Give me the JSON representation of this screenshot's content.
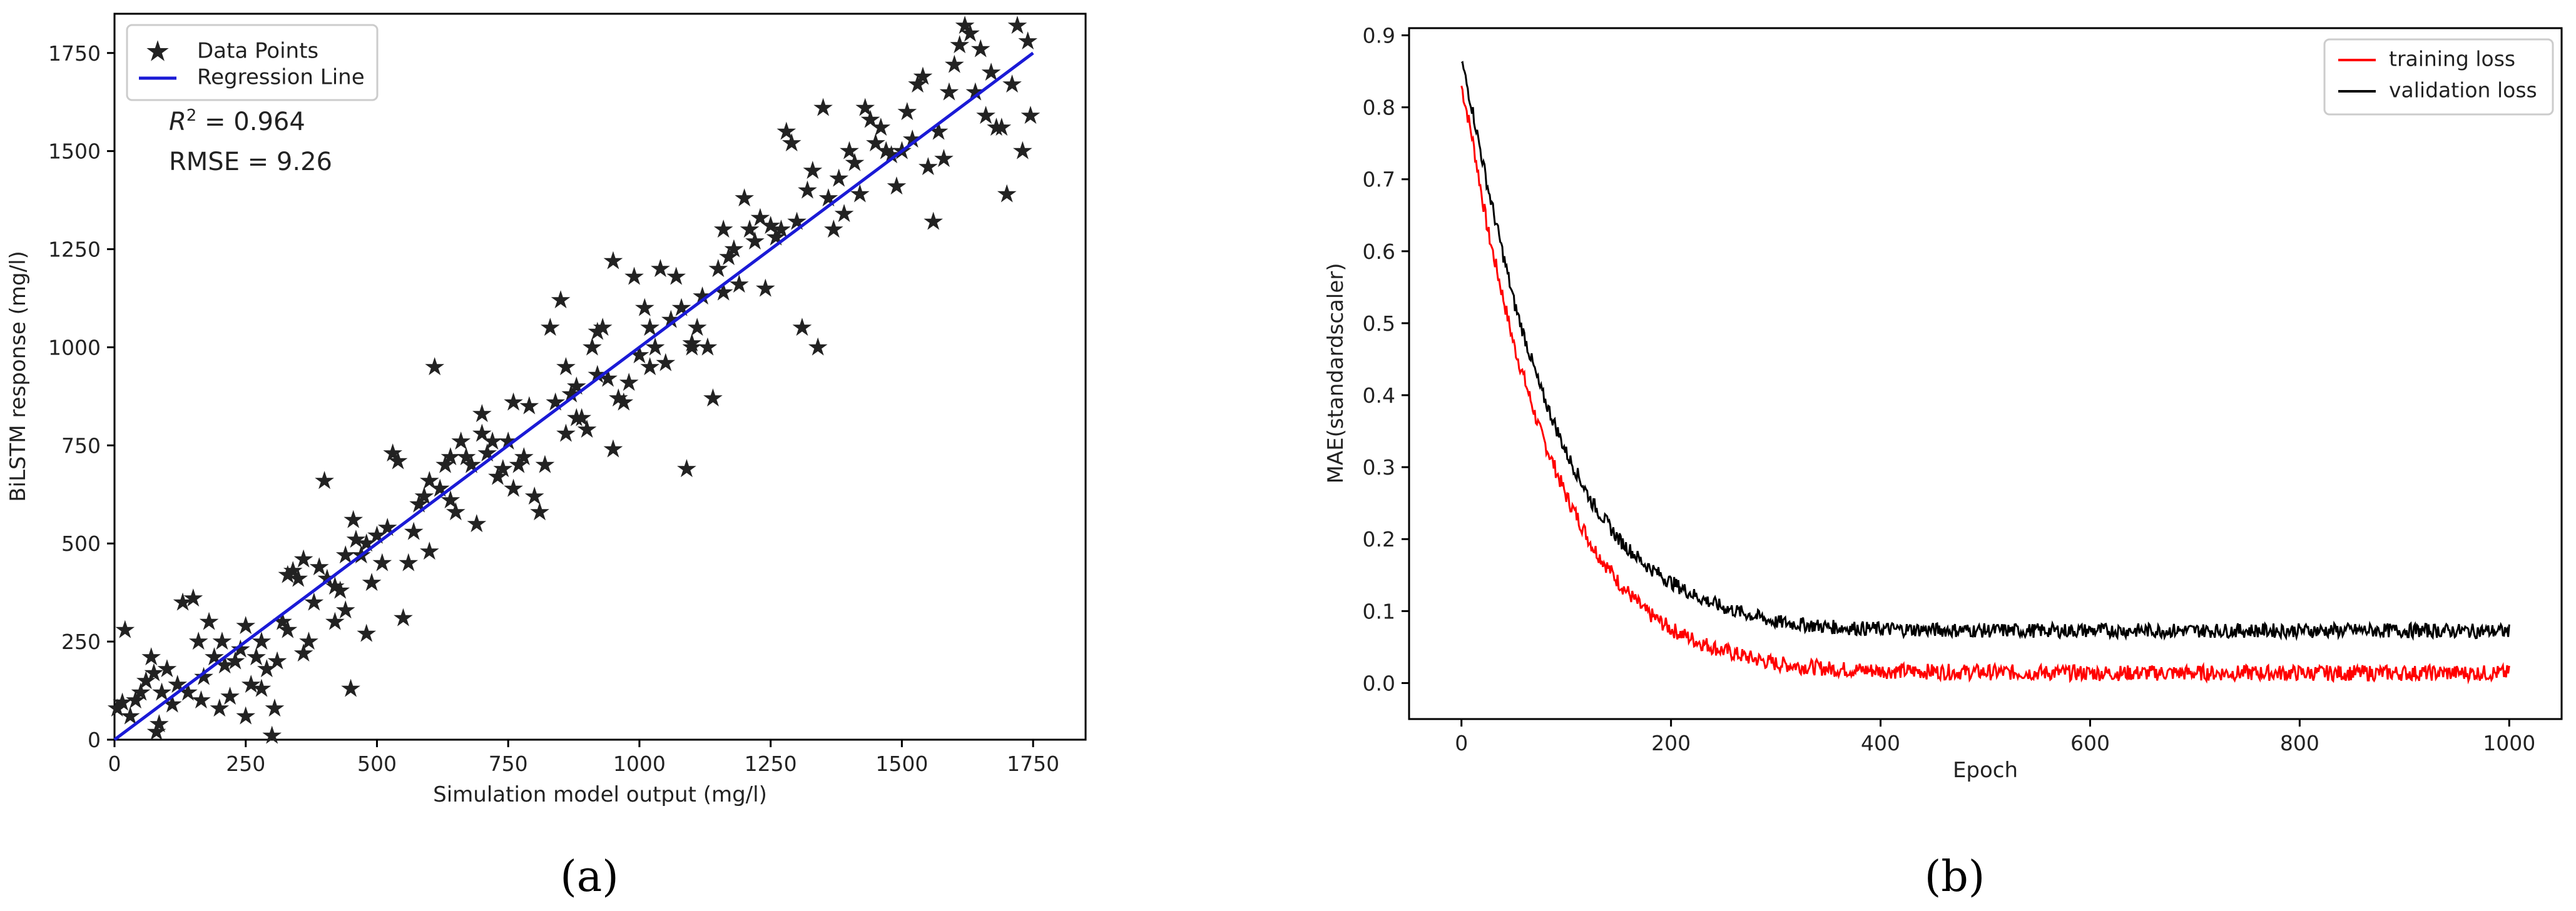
{
  "chart_data": [
    {
      "type": "scatter",
      "panel_label": "(a)",
      "xlabel": "Simulation model output (mg/l)",
      "ylabel": "BiLSTM response (mg/l)",
      "xlim": [
        0,
        1850
      ],
      "ylim": [
        0,
        1850
      ],
      "xticks": [
        0,
        250,
        500,
        750,
        1000,
        1250,
        1500,
        1750
      ],
      "yticks": [
        0,
        250,
        500,
        750,
        1000,
        1250,
        1500,
        1750
      ],
      "legend_position": "top-left",
      "annotations": {
        "r2_prefix": "R",
        "r2_sup": "2",
        "r2_value": " = 0.964",
        "rmse": "RMSE = 9.26"
      },
      "series": [
        {
          "name": "Data Points",
          "marker": "star",
          "color": "#000000",
          "points": [
            [
              5,
              80
            ],
            [
              15,
              95
            ],
            [
              20,
              280
            ],
            [
              30,
              60
            ],
            [
              40,
              100
            ],
            [
              50,
              120
            ],
            [
              60,
              150
            ],
            [
              70,
              210
            ],
            [
              75,
              170
            ],
            [
              80,
              20
            ],
            [
              85,
              40
            ],
            [
              90,
              120
            ],
            [
              100,
              180
            ],
            [
              110,
              90
            ],
            [
              120,
              140
            ],
            [
              130,
              350
            ],
            [
              140,
              120
            ],
            [
              150,
              360
            ],
            [
              160,
              250
            ],
            [
              165,
              100
            ],
            [
              170,
              160
            ],
            [
              180,
              300
            ],
            [
              190,
              210
            ],
            [
              200,
              80
            ],
            [
              205,
              250
            ],
            [
              210,
              190
            ],
            [
              220,
              110
            ],
            [
              230,
              200
            ],
            [
              240,
              230
            ],
            [
              250,
              60
            ],
            [
              260,
              140
            ],
            [
              270,
              210
            ],
            [
              280,
              250
            ],
            [
              290,
              180
            ],
            [
              300,
              10
            ],
            [
              305,
              80
            ],
            [
              310,
              200
            ],
            [
              320,
              300
            ],
            [
              330,
              280
            ],
            [
              340,
              430
            ],
            [
              350,
              410
            ],
            [
              360,
              220
            ],
            [
              370,
              250
            ],
            [
              380,
              350
            ],
            [
              390,
              440
            ],
            [
              400,
              660
            ],
            [
              405,
              410
            ],
            [
              420,
              300
            ],
            [
              430,
              380
            ],
            [
              440,
              470
            ],
            [
              450,
              130
            ],
            [
              455,
              560
            ],
            [
              460,
              510
            ],
            [
              470,
              470
            ],
            [
              480,
              500
            ],
            [
              490,
              400
            ],
            [
              500,
              520
            ],
            [
              510,
              450
            ],
            [
              520,
              540
            ],
            [
              530,
              730
            ],
            [
              540,
              710
            ],
            [
              550,
              310
            ],
            [
              560,
              450
            ],
            [
              570,
              530
            ],
            [
              580,
              600
            ],
            [
              590,
              620
            ],
            [
              600,
              660
            ],
            [
              610,
              950
            ],
            [
              620,
              640
            ],
            [
              630,
              700
            ],
            [
              640,
              610
            ],
            [
              650,
              580
            ],
            [
              660,
              760
            ],
            [
              670,
              720
            ],
            [
              680,
              700
            ],
            [
              690,
              550
            ],
            [
              700,
              780
            ],
            [
              710,
              730
            ],
            [
              720,
              760
            ],
            [
              730,
              670
            ],
            [
              740,
              690
            ],
            [
              750,
              760
            ],
            [
              760,
              640
            ],
            [
              770,
              700
            ],
            [
              780,
              720
            ],
            [
              790,
              850
            ],
            [
              800,
              620
            ],
            [
              810,
              580
            ],
            [
              820,
              700
            ],
            [
              830,
              1050
            ],
            [
              840,
              860
            ],
            [
              850,
              1120
            ],
            [
              860,
              950
            ],
            [
              870,
              880
            ],
            [
              880,
              900
            ],
            [
              890,
              820
            ],
            [
              900,
              790
            ],
            [
              910,
              1000
            ],
            [
              920,
              1040
            ],
            [
              930,
              1050
            ],
            [
              940,
              920
            ],
            [
              950,
              1220
            ],
            [
              960,
              870
            ],
            [
              970,
              860
            ],
            [
              980,
              910
            ],
            [
              990,
              1180
            ],
            [
              1000,
              980
            ],
            [
              1010,
              1100
            ],
            [
              1020,
              1050
            ],
            [
              1030,
              1000
            ],
            [
              1040,
              1200
            ],
            [
              1050,
              960
            ],
            [
              1060,
              1070
            ],
            [
              1070,
              1180
            ],
            [
              1080,
              1100
            ],
            [
              1090,
              690
            ],
            [
              1100,
              1000
            ],
            [
              1110,
              1050
            ],
            [
              1120,
              1130
            ],
            [
              1130,
              1000
            ],
            [
              1140,
              870
            ],
            [
              1150,
              1200
            ],
            [
              1160,
              1140
            ],
            [
              1170,
              1230
            ],
            [
              1180,
              1250
            ],
            [
              1190,
              1160
            ],
            [
              1200,
              1380
            ],
            [
              1210,
              1300
            ],
            [
              1220,
              1270
            ],
            [
              1230,
              1330
            ],
            [
              1240,
              1150
            ],
            [
              1250,
              1310
            ],
            [
              1260,
              1280
            ],
            [
              1270,
              1300
            ],
            [
              1280,
              1550
            ],
            [
              1290,
              1520
            ],
            [
              1300,
              1320
            ],
            [
              1310,
              1050
            ],
            [
              1320,
              1400
            ],
            [
              1330,
              1450
            ],
            [
              1340,
              1000
            ],
            [
              1350,
              1610
            ],
            [
              1360,
              1380
            ],
            [
              1370,
              1300
            ],
            [
              1380,
              1430
            ],
            [
              1390,
              1340
            ],
            [
              1400,
              1500
            ],
            [
              1410,
              1470
            ],
            [
              1420,
              1390
            ],
            [
              1430,
              1610
            ],
            [
              1440,
              1580
            ],
            [
              1450,
              1520
            ],
            [
              1460,
              1560
            ],
            [
              1470,
              1500
            ],
            [
              1480,
              1490
            ],
            [
              1490,
              1410
            ],
            [
              1500,
              1500
            ],
            [
              1510,
              1600
            ],
            [
              1520,
              1530
            ],
            [
              1530,
              1670
            ],
            [
              1540,
              1690
            ],
            [
              1550,
              1460
            ],
            [
              1560,
              1320
            ],
            [
              1570,
              1550
            ],
            [
              1580,
              1480
            ],
            [
              1590,
              1650
            ],
            [
              1600,
              1720
            ],
            [
              1610,
              1770
            ],
            [
              1620,
              1820
            ],
            [
              1630,
              1800
            ],
            [
              1640,
              1650
            ],
            [
              1650,
              1760
            ],
            [
              1660,
              1590
            ],
            [
              1670,
              1700
            ],
            [
              1680,
              1560
            ],
            [
              1690,
              1560
            ],
            [
              1700,
              1390
            ],
            [
              1710,
              1670
            ],
            [
              1720,
              1820
            ],
            [
              1730,
              1500
            ],
            [
              1740,
              1780
            ],
            [
              1745,
              1590
            ],
            [
              420,
              390
            ],
            [
              360,
              460
            ],
            [
              480,
              270
            ],
            [
              440,
              330
            ],
            [
              330,
              420
            ],
            [
              280,
              130
            ],
            [
              250,
              290
            ],
            [
              600,
              480
            ],
            [
              640,
              720
            ],
            [
              700,
              830
            ],
            [
              760,
              860
            ],
            [
              860,
              780
            ],
            [
              880,
              820
            ],
            [
              920,
              930
            ],
            [
              950,
              740
            ],
            [
              1020,
              950
            ],
            [
              1100,
              1010
            ],
            [
              1160,
              1300
            ]
          ]
        },
        {
          "name": "Regression Line",
          "type": "line",
          "color": "#1a1ad6",
          "x": [
            0,
            1750
          ],
          "y": [
            0,
            1750
          ]
        }
      ]
    },
    {
      "type": "line",
      "panel_label": "(b)",
      "xlabel": "Epoch",
      "ylabel": "MAE(standardscaler)",
      "xlim": [
        -50,
        1050
      ],
      "ylim": [
        -0.05,
        0.91
      ],
      "xticks": [
        0,
        200,
        400,
        600,
        800,
        1000
      ],
      "yticks": [
        0.0,
        0.1,
        0.2,
        0.3,
        0.4,
        0.5,
        0.6,
        0.7,
        0.8,
        0.9
      ],
      "ytick_labels": [
        "0.0",
        "0.1",
        "0.2",
        "0.3",
        "0.4",
        "0.5",
        "0.6",
        "0.7",
        "0.8",
        "0.9"
      ],
      "legend_position": "top-right",
      "series": [
        {
          "name": "training loss",
          "color": "#ff0000",
          "x": [
            0,
            10,
            25,
            50,
            75,
            100,
            125,
            150,
            175,
            200,
            225,
            250,
            275,
            300,
            350,
            400,
            500,
            600,
            700,
            800,
            900,
            1000
          ],
          "y": [
            0.83,
            0.76,
            0.63,
            0.47,
            0.35,
            0.26,
            0.19,
            0.14,
            0.1,
            0.075,
            0.058,
            0.045,
            0.035,
            0.027,
            0.02,
            0.017,
            0.015,
            0.014,
            0.014,
            0.014,
            0.014,
            0.014
          ],
          "noise": 0.011
        },
        {
          "name": "validation loss",
          "color": "#000000",
          "x": [
            0,
            10,
            25,
            50,
            75,
            100,
            125,
            150,
            175,
            200,
            225,
            250,
            275,
            300,
            350,
            400,
            500,
            600,
            700,
            800,
            900,
            1000
          ],
          "y": [
            0.865,
            0.8,
            0.69,
            0.53,
            0.41,
            0.32,
            0.25,
            0.2,
            0.165,
            0.14,
            0.12,
            0.105,
            0.095,
            0.085,
            0.078,
            0.075,
            0.073,
            0.073,
            0.073,
            0.073,
            0.073,
            0.072
          ],
          "noise": 0.01
        }
      ]
    }
  ]
}
